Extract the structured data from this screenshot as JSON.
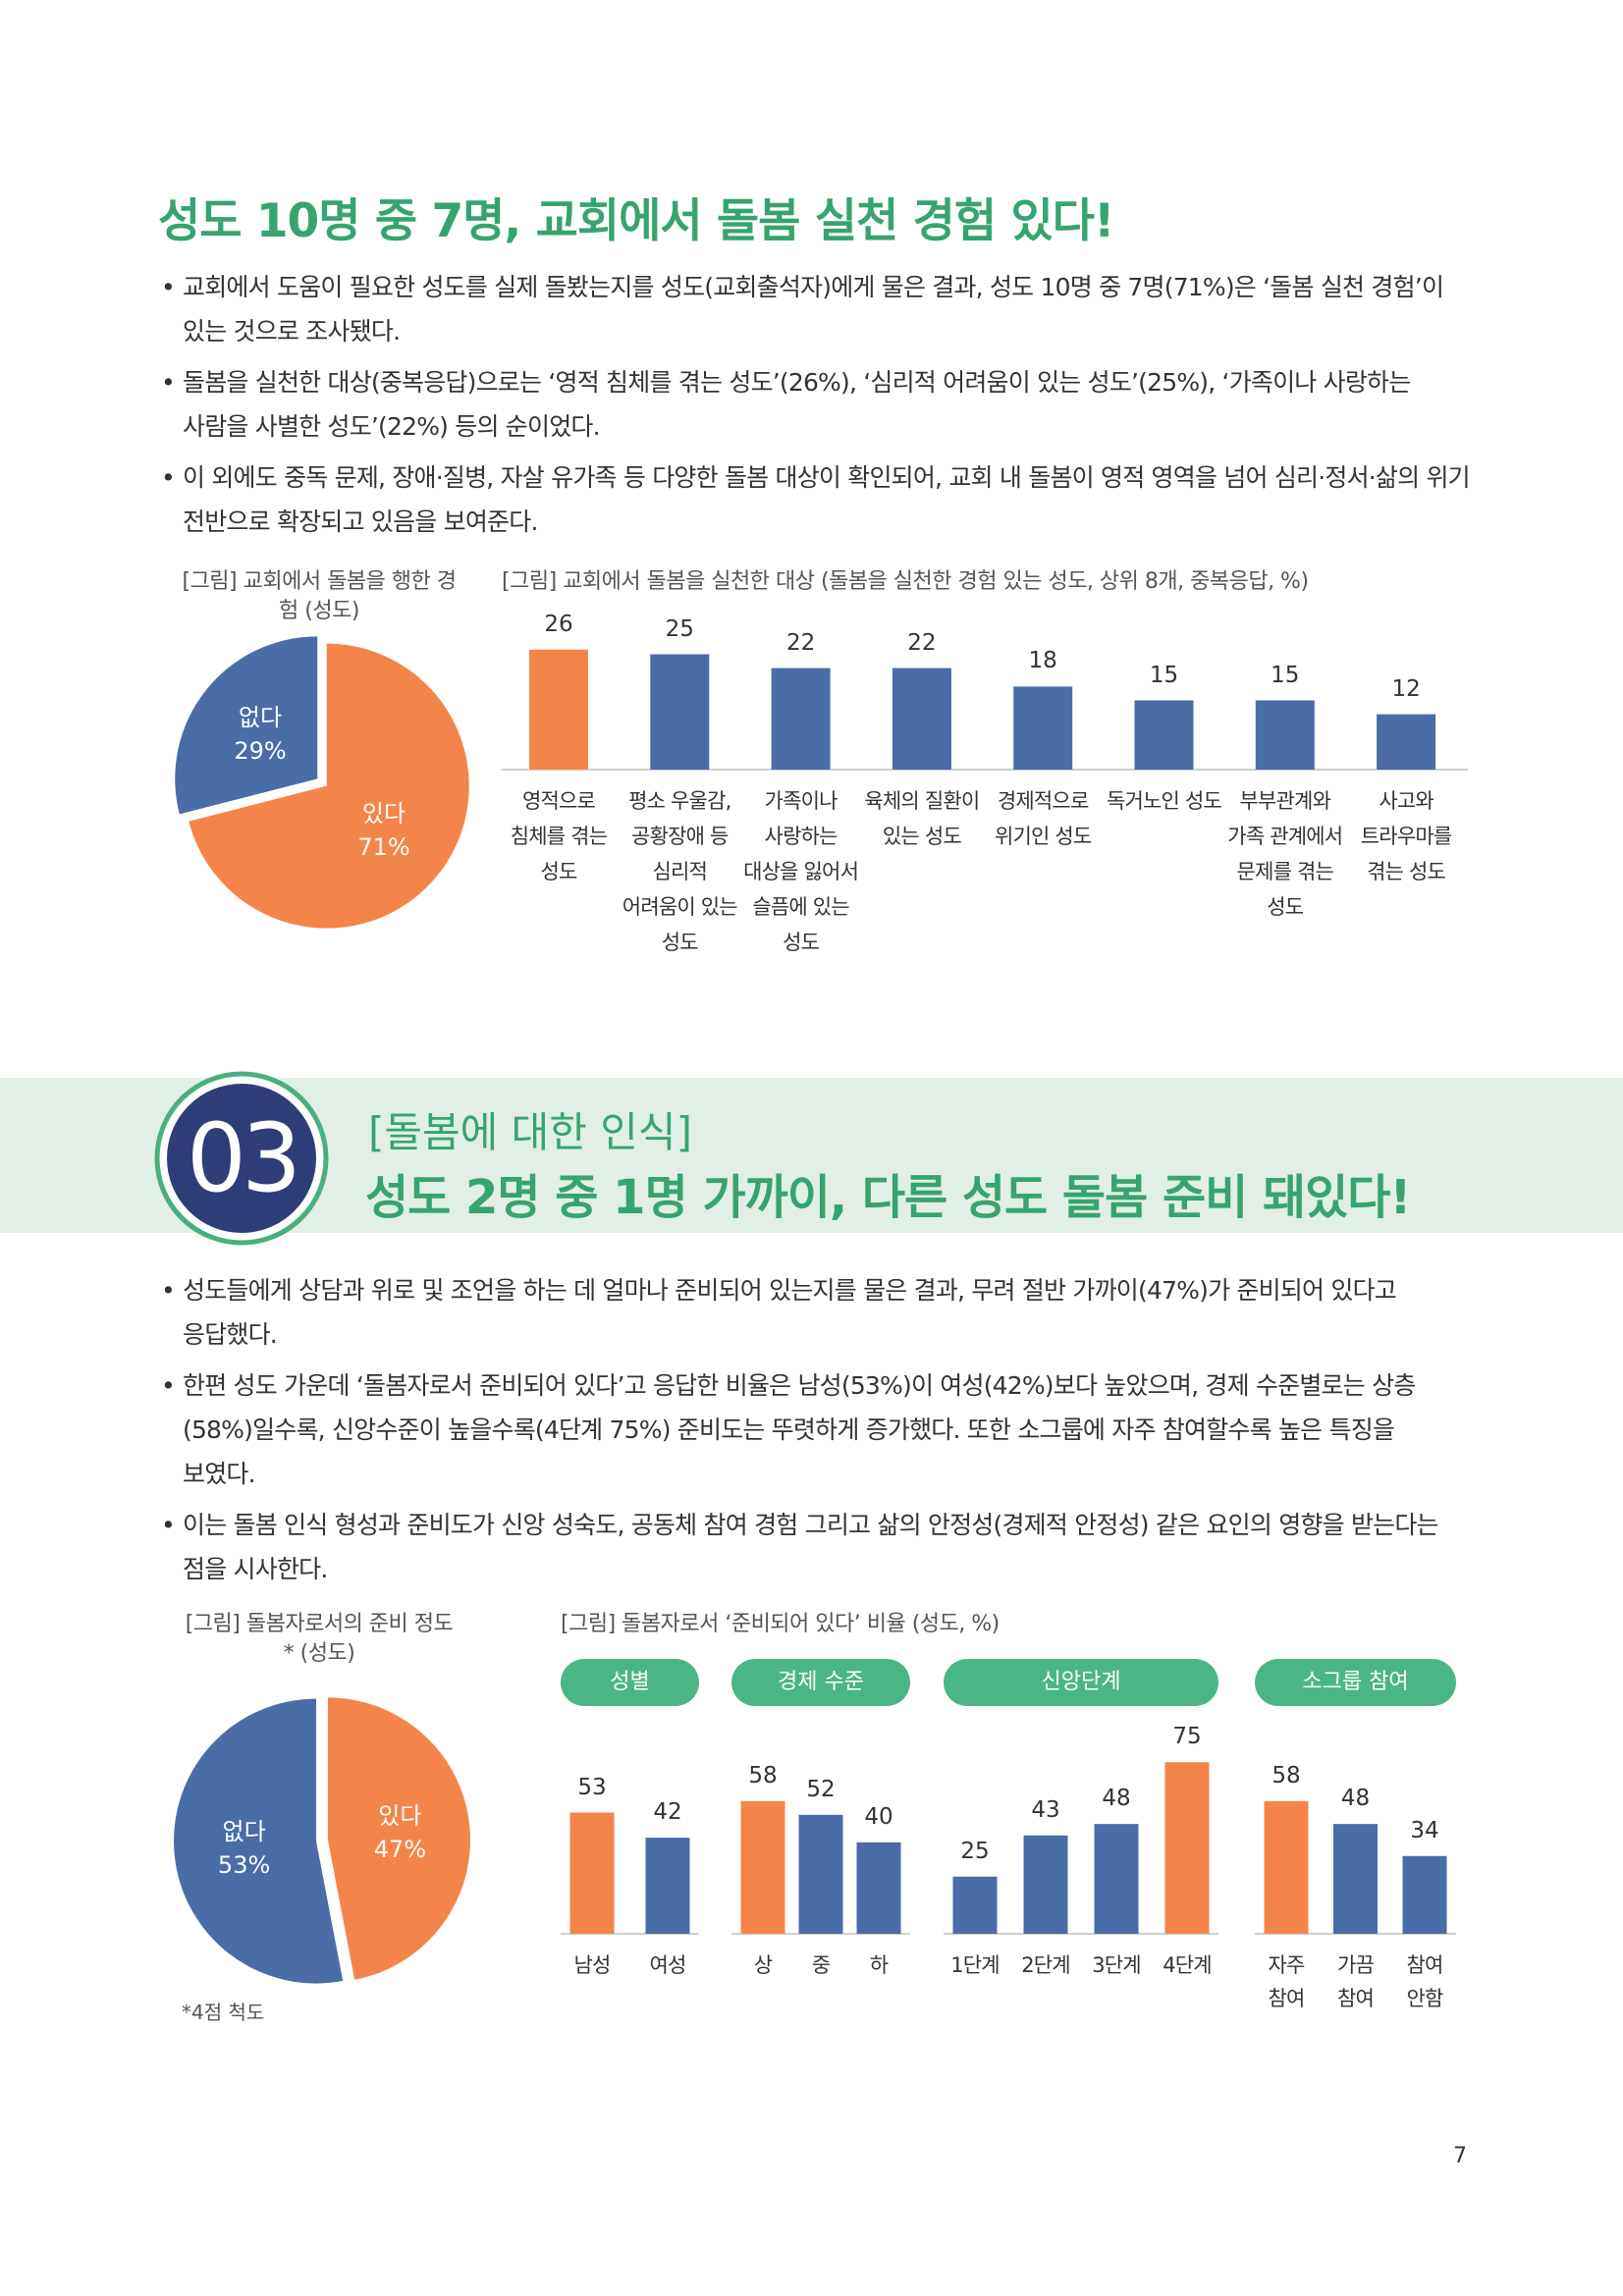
{
  "section1": {
    "heading": "성도 10명 중 7명, 교회에서 돌봄 실천 경험 있다!",
    "bullets": [
      "교회에서 도움이 필요한 성도를 실제 돌봤는지를 성도(교회출석자)에게 물은 결과, 성도 10명 중 7명(71%)은 ‘돌봄 실천 경험’이 있는 것으로 조사됐다.",
      "돌봄을 실천한 대상(중복응답)으로는 ‘영적 침체를 겪는 성도’(26%), ‘심리적 어려움이 있는 성도’(25%), ‘가족이나 사랑하는 사람을 사별한 성도’(22%) 등의 순이었다.",
      "이 외에도 중독 문제, 장애·질병, 자살 유가족 등 다양한 돌봄 대상이 확인되어, 교회 내 돌봄이 영적 영역을 넘어 심리·정서·삶의 위기 전반으로 확장되고 있음을 보여준다."
    ]
  },
  "section2": {
    "number": "03",
    "label": "[돌봄에 대한 인식]",
    "heading": "성도 2명 중 1명 가까이, 다른 성도 돌봄 준비 돼있다!",
    "bullets": [
      "성도들에게 상담과 위로 및 조언을 하는 데 얼마나 준비되어 있는지를 물은 결과, 무려 절반 가까이(47%)가 준비되어 있다고 응답했다.",
      "한편 성도 가운데 ‘돌봄자로서 준비되어 있다’고 응답한 비율은 남성(53%)이 여성(42%)보다 높았으며, 경제 수준별로는 상층(58%)일수록, 신앙수준이 높을수록(4단계 75%) 준비도는 뚜렷하게 증가했다. 또한 소그룹에 자주 참여할수록 높은 특징을 보였다.",
      "이는 돌봄 인식 형성과 준비도가 신앙 성숙도, 공동체 참여 경험 그리고 삶의 안정성(경제적 안정성) 같은 요인의 영향을 받는다는 점을 시사한다."
    ]
  },
  "page_number": "7",
  "chart_data": [
    {
      "type": "pie",
      "title": "[그림] 교회에서 돌봄을 행한 경험 (성도)",
      "categories": [
        "있다",
        "없다"
      ],
      "values": [
        71,
        29
      ],
      "value_labels": [
        "71%",
        "29%"
      ],
      "colors": [
        "#f4854a",
        "#4a6da8"
      ]
    },
    {
      "type": "bar",
      "title": "[그림] 교회에서 돌봄을 실천한 대상 (돌봄을 실천한 경험 있는 성도, 상위 8개, 중복응답, %)",
      "categories": [
        "영적으로 침체를 겪는 성도",
        "평소 우울감, 공황장애 등 심리적 어려움이 있는 성도",
        "가족이나 사랑하는 대상을 잃어서 슬픔에 있는 성도",
        "육체의 질환이 있는 성도",
        "경제적으로 위기인 성도",
        "독거노인 성도",
        "부부관계와 가족 관계에서 문제를 겪는 성도",
        "사고와 트라우마를 겪는 성도"
      ],
      "values": [
        26,
        25,
        22,
        22,
        18,
        15,
        15,
        12
      ],
      "colors": [
        "#f4854a",
        "#4a6da8",
        "#4a6da8",
        "#4a6da8",
        "#4a6da8",
        "#4a6da8",
        "#4a6da8",
        "#4a6da8"
      ]
    },
    {
      "type": "pie",
      "title": "[그림] 돌봄자로서의 준비 정도* (성도)",
      "categories": [
        "있다",
        "없다"
      ],
      "values": [
        47,
        53
      ],
      "value_labels": [
        "47%",
        "53%"
      ],
      "colors": [
        "#f4854a",
        "#4a6da8"
      ],
      "note": "*4점 척도"
    },
    {
      "type": "grouped_bar",
      "title": "[그림] 돌봄자로서 ‘준비되어 있다’ 비율 (성도, %)",
      "groups": [
        {
          "name": "성별",
          "categories": [
            "남성",
            "여성"
          ],
          "values": [
            53,
            42
          ],
          "colors": [
            "#f4854a",
            "#4a6da8"
          ]
        },
        {
          "name": "경제 수준",
          "categories": [
            "상",
            "중",
            "하"
          ],
          "values": [
            58,
            52,
            40
          ],
          "colors": [
            "#f4854a",
            "#4a6da8",
            "#4a6da8"
          ]
        },
        {
          "name": "신앙단계",
          "categories": [
            "1단계",
            "2단계",
            "3단계",
            "4단계"
          ],
          "values": [
            25,
            43,
            48,
            75
          ],
          "colors": [
            "#4a6da8",
            "#4a6da8",
            "#4a6da8",
            "#f4854a"
          ]
        },
        {
          "name": "소그룹 참여",
          "categories": [
            "자주 참여",
            "가끔 참여",
            "참여 안함"
          ],
          "values": [
            58,
            48,
            34
          ],
          "colors": [
            "#f4854a",
            "#4a6da8",
            "#4a6da8"
          ]
        }
      ]
    }
  ]
}
